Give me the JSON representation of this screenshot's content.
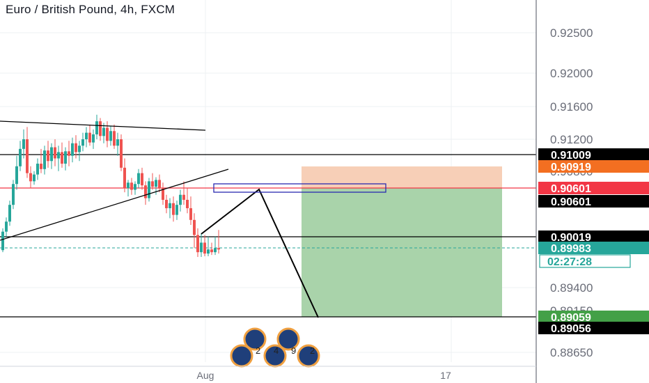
{
  "header": {
    "title": "Euro / British Pound, 4h, FXCM"
  },
  "chart_data": {
    "type": "candlestick",
    "title": "Euro / British Pound, 4h, FXCM",
    "price_axis_ticks": [
      0.925,
      0.92,
      0.916,
      0.912,
      0.894,
      0.8865
    ],
    "time_axis_ticks": [
      "Aug",
      "17"
    ],
    "colors": {
      "up": "#26a69a",
      "down": "#ef5350",
      "grid": "#eef0f3",
      "stop": "#f7cfb7",
      "target": "#a9d3aa"
    },
    "price_tags": [
      {
        "label": "0.91009",
        "bg": "#000000",
        "fg": "#ffffff"
      },
      {
        "label": "0.90919",
        "bg": "#f36f21",
        "fg": "#ffffff"
      },
      {
        "label": "0.90601",
        "bg": "#f23645",
        "fg": "#ffffff"
      },
      {
        "label": "0.90601",
        "bg": "#000000",
        "fg": "#ffffff"
      },
      {
        "label": "0.90019",
        "bg": "#000000",
        "fg": "#ffffff"
      },
      {
        "label": "0.89983",
        "bg": "#26a69a",
        "fg": "#ffffff"
      },
      {
        "label": "02:27:28",
        "bg": "#ffffff",
        "fg": "#26a69a"
      },
      {
        "label": "0.89059",
        "bg": "#43a047",
        "fg": "#ffffff"
      },
      {
        "label": "0.89056",
        "bg": "#000000",
        "fg": "#ffffff"
      }
    ],
    "hidden_labels": [
      "0.90800",
      "0.90600",
      "0.89150"
    ],
    "horizontal_lines": [
      {
        "price": 0.91009,
        "color": "#000000"
      },
      {
        "price": 0.90601,
        "color": "#f23645"
      },
      {
        "price": 0.90019,
        "color": "#000000"
      },
      {
        "price": 0.89059,
        "color": "#000000"
      }
    ],
    "position": {
      "entry": 0.90601,
      "stop": 0.90919,
      "target": 0.89059
    },
    "last_price": 0.89983,
    "countdown": "02:27:28",
    "watermark_digits": [
      "2",
      "4",
      "9",
      "2"
    ]
  }
}
